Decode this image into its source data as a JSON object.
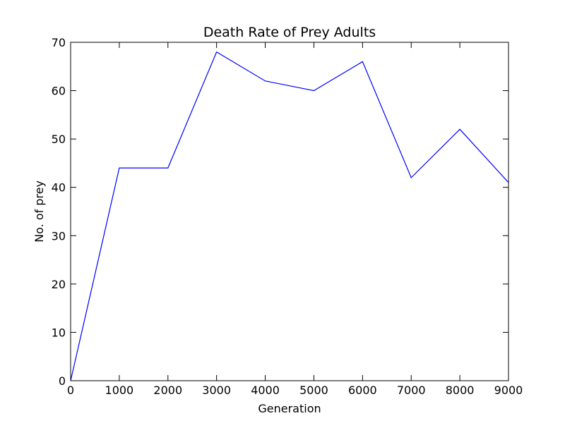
{
  "chart_data": {
    "type": "line",
    "title": "Death Rate of Prey Adults",
    "xlabel": "Generation",
    "ylabel": "No. of prey",
    "xlim": [
      0,
      9000
    ],
    "ylim": [
      0,
      70
    ],
    "xticks": [
      0,
      1000,
      2000,
      3000,
      4000,
      5000,
      6000,
      7000,
      8000,
      9000
    ],
    "yticks": [
      0,
      10,
      20,
      30,
      40,
      50,
      60,
      70
    ],
    "grid": false,
    "series": [
      {
        "color": "#0000ff",
        "x": [
          0,
          1000,
          2000,
          3000,
          4000,
          5000,
          6000,
          7000,
          8000,
          9000
        ],
        "y": [
          0,
          44,
          44,
          68,
          62,
          60,
          66,
          42,
          52,
          41
        ]
      }
    ]
  }
}
